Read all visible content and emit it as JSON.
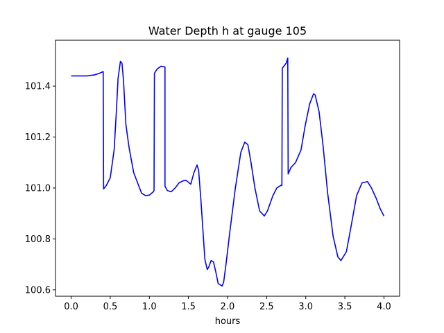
{
  "chart_data": {
    "type": "line",
    "title": "Water Depth h at gauge 105",
    "xlabel": "hours",
    "ylabel": "",
    "xlim": [
      -0.2,
      4.2
    ],
    "ylim": [
      100.575,
      101.58
    ],
    "xticks": [
      0.0,
      0.5,
      1.0,
      1.5,
      2.0,
      2.5,
      3.0,
      3.5,
      4.0
    ],
    "xtick_labels": [
      "0.0",
      "0.5",
      "1.0",
      "1.5",
      "2.0",
      "2.5",
      "3.0",
      "3.5",
      "4.0"
    ],
    "yticks": [
      100.6,
      100.8,
      101.0,
      101.2,
      101.4
    ],
    "ytick_labels": [
      "100.6",
      "100.8",
      "101.0",
      "101.2",
      "101.4"
    ],
    "grid": false,
    "series": [
      {
        "color": "#0000ff",
        "x": [
          0.0,
          0.1,
          0.2,
          0.3,
          0.36,
          0.41,
          0.415,
          0.45,
          0.5,
          0.55,
          0.58,
          0.6,
          0.63,
          0.65,
          0.67,
          0.7,
          0.74,
          0.8,
          0.85,
          0.9,
          0.95,
          1.0,
          1.05,
          1.06,
          1.065,
          1.1,
          1.15,
          1.2,
          1.2,
          1.23,
          1.28,
          1.33,
          1.38,
          1.43,
          1.47,
          1.53,
          1.57,
          1.61,
          1.63,
          1.66,
          1.71,
          1.74,
          1.76,
          1.79,
          1.82,
          1.85,
          1.88,
          1.93,
          1.95,
          1.98,
          2.03,
          2.1,
          2.17,
          2.22,
          2.26,
          2.3,
          2.35,
          2.41,
          2.47,
          2.51,
          2.58,
          2.63,
          2.68,
          2.695,
          2.7,
          2.75,
          2.77,
          2.775,
          2.81,
          2.87,
          2.94,
          2.99,
          3.05,
          3.1,
          3.12,
          3.17,
          3.22,
          3.28,
          3.35,
          3.41,
          3.45,
          3.52,
          3.58,
          3.65,
          3.72,
          3.79,
          3.84,
          3.9,
          3.95,
          4.0
        ],
        "y": [
          101.44,
          101.44,
          101.44,
          101.444,
          101.45,
          101.457,
          100.996,
          101.01,
          101.04,
          101.15,
          101.31,
          101.43,
          101.497,
          101.49,
          101.42,
          101.25,
          101.16,
          101.06,
          101.02,
          100.98,
          100.97,
          100.972,
          100.985,
          100.99,
          101.45,
          101.467,
          101.478,
          101.475,
          101.007,
          100.99,
          100.985,
          101.0,
          101.02,
          101.028,
          101.03,
          101.015,
          101.06,
          101.09,
          101.07,
          100.95,
          100.72,
          100.68,
          100.69,
          100.715,
          100.71,
          100.67,
          100.625,
          100.615,
          100.63,
          100.7,
          100.83,
          101.0,
          101.14,
          101.18,
          101.17,
          101.1,
          101.0,
          100.91,
          100.89,
          100.91,
          100.97,
          101.0,
          101.01,
          101.01,
          101.47,
          101.49,
          101.51,
          101.055,
          101.08,
          101.1,
          101.15,
          101.24,
          101.33,
          101.37,
          101.365,
          101.3,
          101.17,
          100.98,
          100.81,
          100.73,
          100.715,
          100.75,
          100.85,
          100.97,
          101.02,
          101.025,
          101.0,
          100.96,
          100.92,
          100.89
        ]
      }
    ]
  }
}
